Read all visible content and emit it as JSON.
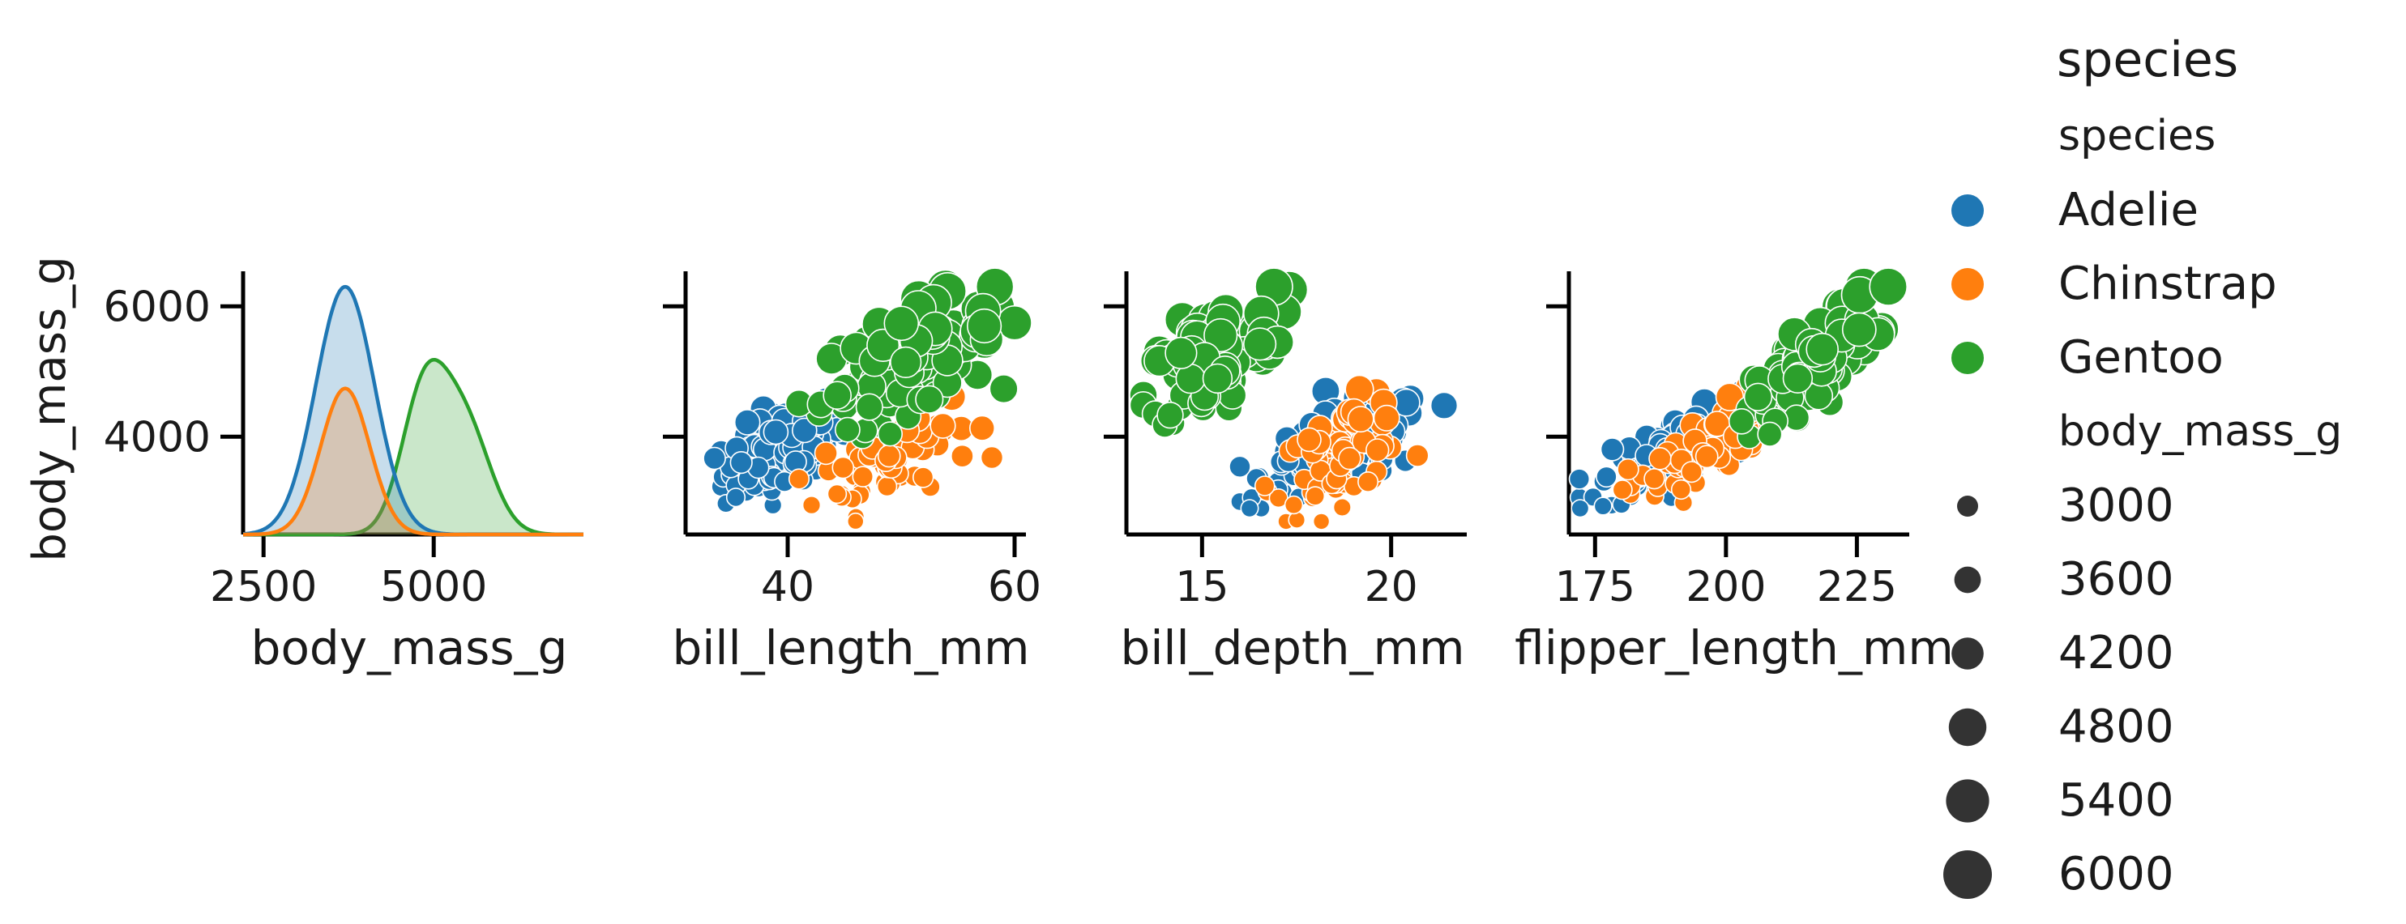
{
  "chart_data": {
    "type": "scatter",
    "legend": {
      "placement": "right",
      "title": "species",
      "hue_title": "species",
      "size_title": "body_mass_g",
      "species": [
        {
          "name": "Adelie",
          "color": "#1f77b4"
        },
        {
          "name": "Chinstrap",
          "color": "#ff7f0e"
        },
        {
          "name": "Gentoo",
          "color": "#2ca02c"
        }
      ],
      "sizes": [
        "3000",
        "3600",
        "4200",
        "4800",
        "5400",
        "6000"
      ]
    },
    "ylabel": "body_mass_g",
    "ylim": [
      2500,
      6500
    ],
    "y_ticks": [
      "4000",
      "6000"
    ],
    "panels": [
      {
        "type": "kde",
        "xlabel": "body_mass_g",
        "xlim": [
          2200,
          7200
        ],
        "x_ticks": [
          "2500",
          "5000"
        ],
        "density_peaks": [
          {
            "species": "Adelie",
            "peak_x": 3700,
            "relative_height": 0.95
          },
          {
            "species": "Chinstrap",
            "peak_x": 3700,
            "relative_height": 0.56
          },
          {
            "species": "Gentoo",
            "peak_x": 4900,
            "relative_height": 0.67
          }
        ]
      },
      {
        "type": "scatter",
        "xlabel": "bill_length_mm",
        "xlim": [
          31,
          61
        ],
        "x_ticks": [
          "40",
          "60"
        ],
        "clusters": {
          "Adelie": {
            "x": [
              33,
              46
            ],
            "y": [
              2900,
              4700
            ]
          },
          "Chinstrap": {
            "x": [
              41,
              58
            ],
            "y": [
              2700,
              4800
            ]
          },
          "Gentoo": {
            "x": [
              41,
              60
            ],
            "y": [
              4000,
              6300
            ]
          }
        }
      },
      {
        "type": "scatter",
        "xlabel": "bill_depth_mm",
        "xlim": [
          13,
          22
        ],
        "x_ticks": [
          "15",
          "20"
        ],
        "clusters": {
          "Adelie": {
            "x": [
              16,
              21.5
            ],
            "y": [
              2900,
              4700
            ]
          },
          "Chinstrap": {
            "x": [
              16.5,
              20.8
            ],
            "y": [
              2700,
              4800
            ]
          },
          "Gentoo": {
            "x": [
              13.1,
              17.3
            ],
            "y": [
              4000,
              6300
            ]
          }
        }
      },
      {
        "type": "scatter",
        "xlabel": "flipper_length_mm",
        "xlim": [
          170,
          235
        ],
        "x_ticks": [
          "175",
          "200",
          "225"
        ],
        "clusters": {
          "Adelie": {
            "x": [
              172,
              210
            ],
            "y": [
              2900,
              4700
            ]
          },
          "Chinstrap": {
            "x": [
              178,
              212
            ],
            "y": [
              2700,
              4800
            ]
          },
          "Gentoo": {
            "x": [
              203,
              231
            ],
            "y": [
              4000,
              6300
            ]
          }
        }
      }
    ]
  }
}
